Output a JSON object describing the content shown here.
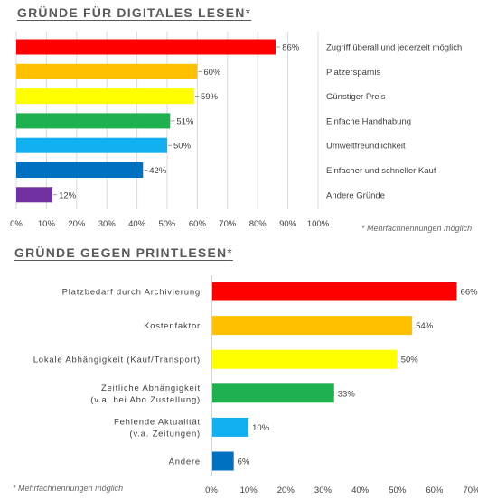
{
  "chart_data": [
    {
      "type": "bar",
      "orientation": "horizontal",
      "title": "GRÜNDE FÜR DIGITALES LESEN",
      "title_marker": "*",
      "categories": [
        "Zugriff überall und jederzeit möglich",
        "Platzersparnis",
        "Günstiger Preis",
        "Einfache Handhabung",
        "Umweltfreundlichkeit",
        "Einfacher und schneller Kauf",
        "Andere Gründe"
      ],
      "values": [
        86,
        60,
        59,
        51,
        50,
        42,
        12
      ],
      "value_labels": [
        "86%",
        "60%",
        "59%",
        "51%",
        "50%",
        "42%",
        "12%"
      ],
      "colors": [
        "#ff0000",
        "#ffc000",
        "#ffff00",
        "#1fb050",
        "#12b0f0",
        "#0070c0",
        "#7030a0"
      ],
      "xlim": [
        0,
        100
      ],
      "xticks": [
        "0%",
        "10%",
        "20%",
        "30%",
        "40%",
        "50%",
        "60%",
        "70%",
        "80%",
        "90%",
        "100%"
      ],
      "grid": true,
      "note": "* Mehrfachnennungen möglich"
    },
    {
      "type": "bar",
      "orientation": "horizontal",
      "title": "GRÜNDE GEGEN PRINTLESEN",
      "title_marker": "*",
      "categories": [
        [
          "Platzbedarf durch Archivierung"
        ],
        [
          "Kostenfaktor"
        ],
        [
          "Lokale Abhängigkeit (Kauf/Transport)"
        ],
        [
          "Zeitliche Abhängigkeit",
          "(v.a. bei Abo Zustellung)"
        ],
        [
          "Fehlende Aktualität",
          "(v.a. Zeitungen)"
        ],
        [
          "Andere"
        ]
      ],
      "values": [
        66,
        54,
        50,
        33,
        10,
        6
      ],
      "value_labels": [
        "66%",
        "54%",
        "50%",
        "33%",
        "10%",
        "6%"
      ],
      "colors": [
        "#ff0000",
        "#ffc000",
        "#ffff00",
        "#1fb050",
        "#12b0f0",
        "#0070c0"
      ],
      "xlim": [
        0,
        70
      ],
      "xticks": [
        "0%",
        "10%",
        "20%",
        "30%",
        "40%",
        "50%",
        "60%",
        "70%"
      ],
      "grid": false,
      "note": "* Mehrfachnennungen möglich"
    }
  ]
}
